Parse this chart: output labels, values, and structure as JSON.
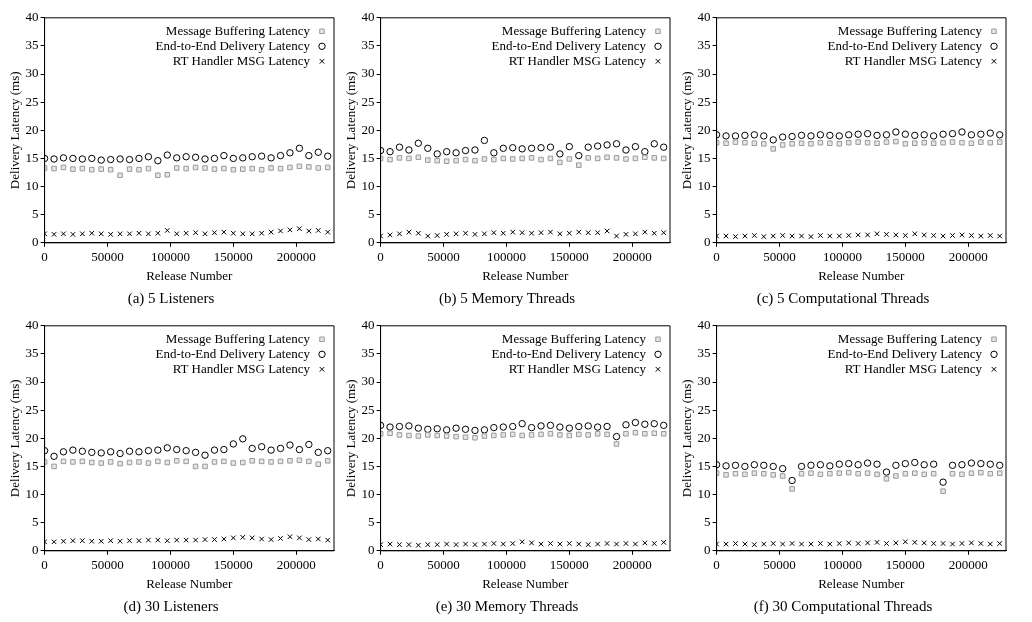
{
  "chart_data": [
    {
      "type": "scatter",
      "title": "(a) 5 Listeners",
      "xlabel": "Release Number",
      "ylabel": "Delivery Latency (ms)",
      "xlim": [
        0,
        230000
      ],
      "ylim": [
        0,
        40
      ],
      "xticks": [
        0,
        50000,
        100000,
        150000,
        200000
      ],
      "yticks": [
        0,
        5,
        10,
        15,
        20,
        25,
        30,
        35,
        40
      ],
      "legend": "top right",
      "x": [
        0,
        7500,
        15000,
        22500,
        30000,
        37500,
        45000,
        52500,
        60000,
        67500,
        75000,
        82500,
        90000,
        97500,
        105000,
        112500,
        120000,
        127500,
        135000,
        142500,
        150000,
        157500,
        165000,
        172500,
        180000,
        187500,
        195000,
        202500,
        210000,
        217500,
        225000
      ],
      "series": [
        {
          "name": "Message Buffering Latency",
          "color": "#999999",
          "marker": "square",
          "values": [
            13.3,
            13.2,
            13.4,
            13.1,
            13.2,
            13.0,
            13.1,
            13.0,
            12.0,
            13.1,
            13.0,
            13.2,
            12.0,
            12.1,
            13.3,
            13.2,
            13.4,
            13.3,
            13.1,
            13.2,
            13.0,
            13.1,
            13.2,
            13.0,
            13.3,
            13.2,
            13.4,
            13.6,
            13.5,
            13.3,
            13.4
          ]
        },
        {
          "name": "End-to-End Delivery Latency",
          "color": "#000000",
          "marker": "circle",
          "values": [
            15.0,
            14.9,
            15.1,
            15.0,
            14.9,
            15.0,
            14.7,
            14.8,
            14.9,
            14.8,
            15.0,
            15.3,
            14.6,
            15.6,
            15.1,
            15.3,
            15.2,
            14.9,
            15.0,
            15.5,
            15.0,
            15.1,
            15.3,
            15.4,
            15.1,
            15.5,
            16.0,
            16.8,
            15.5,
            16.1,
            15.4
          ]
        },
        {
          "name": "RT Handler MSG Latency",
          "color": "#000000",
          "marker": "cross",
          "values": [
            1.6,
            1.5,
            1.6,
            1.5,
            1.6,
            1.7,
            1.6,
            1.5,
            1.6,
            1.6,
            1.7,
            1.6,
            1.7,
            2.2,
            1.6,
            1.7,
            1.8,
            1.6,
            1.8,
            1.9,
            1.7,
            1.6,
            1.6,
            1.7,
            1.9,
            2.1,
            2.3,
            2.5,
            2.1,
            2.2,
            1.9
          ]
        }
      ]
    },
    {
      "type": "scatter",
      "title": "(b) 5 Memory Threads",
      "xlabel": "Release Number",
      "ylabel": "Delivery Latency (ms)",
      "xlim": [
        0,
        230000
      ],
      "ylim": [
        0,
        40
      ],
      "xticks": [
        0,
        50000,
        100000,
        150000,
        200000
      ],
      "yticks": [
        0,
        5,
        10,
        15,
        20,
        25,
        30,
        35,
        40
      ],
      "legend": "top right",
      "x": [
        0,
        7500,
        15000,
        22500,
        30000,
        37500,
        45000,
        52500,
        60000,
        67500,
        75000,
        82500,
        90000,
        97500,
        105000,
        112500,
        120000,
        127500,
        135000,
        142500,
        150000,
        157500,
        165000,
        172500,
        180000,
        187500,
        195000,
        202500,
        210000,
        217500,
        225000
      ],
      "series": [
        {
          "name": "Message Buffering Latency",
          "color": "#999999",
          "marker": "square",
          "values": [
            15.0,
            14.8,
            15.1,
            15.0,
            15.2,
            14.7,
            14.6,
            14.5,
            14.6,
            14.8,
            14.6,
            14.9,
            14.8,
            15.0,
            14.9,
            15.0,
            15.1,
            14.8,
            15.0,
            14.3,
            14.9,
            13.8,
            15.1,
            15.0,
            15.2,
            15.1,
            14.9,
            15.0,
            15.2,
            15.1,
            15.0
          ]
        },
        {
          "name": "End-to-End Delivery Latency",
          "color": "#000000",
          "marker": "circle",
          "values": [
            16.4,
            16.2,
            17.0,
            16.5,
            17.7,
            16.8,
            15.8,
            16.2,
            16.0,
            16.4,
            16.5,
            18.2,
            16.0,
            16.8,
            16.9,
            16.7,
            16.8,
            16.9,
            17.0,
            15.8,
            17.1,
            15.5,
            17.0,
            17.2,
            17.4,
            17.6,
            16.5,
            17.1,
            16.2,
            17.6,
            17.0
          ]
        },
        {
          "name": "RT Handler MSG Latency",
          "color": "#000000",
          "marker": "cross",
          "values": [
            1.2,
            1.4,
            1.6,
            1.9,
            1.7,
            1.2,
            1.3,
            1.5,
            1.6,
            1.7,
            1.5,
            1.6,
            1.8,
            1.7,
            1.9,
            1.8,
            1.7,
            1.8,
            1.9,
            1.6,
            1.7,
            1.9,
            1.8,
            1.8,
            2.1,
            1.2,
            1.5,
            1.6,
            1.9,
            1.7,
            1.8
          ]
        }
      ]
    },
    {
      "type": "scatter",
      "title": "(c) 5 Computational Threads",
      "xlabel": "Release Number",
      "ylabel": "Delivery Latency (ms)",
      "xlim": [
        0,
        230000
      ],
      "ylim": [
        0,
        40
      ],
      "xticks": [
        0,
        50000,
        100000,
        150000,
        200000
      ],
      "yticks": [
        0,
        5,
        10,
        15,
        20,
        25,
        30,
        35,
        40
      ],
      "legend": "top right",
      "x": [
        0,
        7500,
        15000,
        22500,
        30000,
        37500,
        45000,
        52500,
        60000,
        67500,
        75000,
        82500,
        90000,
        97500,
        105000,
        112500,
        120000,
        127500,
        135000,
        142500,
        150000,
        157500,
        165000,
        172500,
        180000,
        187500,
        195000,
        202500,
        210000,
        217500,
        225000
      ],
      "series": [
        {
          "name": "Message Buffering Latency",
          "color": "#999999",
          "marker": "square",
          "values": [
            17.8,
            17.7,
            17.9,
            17.8,
            17.7,
            17.6,
            16.7,
            17.4,
            17.6,
            17.7,
            17.6,
            17.8,
            17.7,
            17.6,
            17.8,
            17.9,
            17.8,
            17.7,
            17.9,
            18.0,
            17.6,
            17.7,
            17.8,
            17.7,
            17.8,
            17.9,
            17.8,
            17.7,
            17.9,
            17.8,
            17.9
          ]
        },
        {
          "name": "End-to-End Delivery Latency",
          "color": "#000000",
          "marker": "circle",
          "values": [
            19.2,
            19.0,
            19.0,
            19.1,
            19.2,
            19.0,
            18.3,
            18.8,
            18.9,
            19.1,
            19.0,
            19.2,
            19.1,
            19.0,
            19.2,
            19.3,
            19.4,
            19.1,
            19.2,
            19.7,
            19.3,
            19.1,
            19.2,
            19.0,
            19.3,
            19.4,
            19.7,
            19.2,
            19.3,
            19.5,
            19.2
          ]
        },
        {
          "name": "RT Handler MSG Latency",
          "color": "#000000",
          "marker": "cross",
          "values": [
            1.2,
            1.2,
            1.1,
            1.2,
            1.3,
            1.1,
            1.2,
            1.3,
            1.2,
            1.2,
            1.1,
            1.3,
            1.2,
            1.2,
            1.3,
            1.4,
            1.4,
            1.6,
            1.5,
            1.4,
            1.3,
            1.6,
            1.4,
            1.3,
            1.2,
            1.3,
            1.4,
            1.3,
            1.2,
            1.3,
            1.2
          ]
        }
      ]
    },
    {
      "type": "scatter",
      "title": "(d) 30 Listeners",
      "xlabel": "Release Number",
      "ylabel": "Delivery Latency (ms)",
      "xlim": [
        0,
        230000
      ],
      "ylim": [
        0,
        40
      ],
      "xticks": [
        0,
        50000,
        100000,
        150000,
        200000
      ],
      "yticks": [
        0,
        5,
        10,
        15,
        20,
        25,
        30,
        35,
        40
      ],
      "legend": "top right",
      "x": [
        0,
        7500,
        15000,
        22500,
        30000,
        37500,
        45000,
        52500,
        60000,
        67500,
        75000,
        82500,
        90000,
        97500,
        105000,
        112500,
        120000,
        127500,
        135000,
        142500,
        150000,
        157500,
        165000,
        172500,
        180000,
        187500,
        195000,
        202500,
        210000,
        217500,
        225000
      ],
      "series": [
        {
          "name": "Message Buffering Latency",
          "color": "#999999",
          "marker": "square",
          "values": [
            15.8,
            15.0,
            15.9,
            15.8,
            15.9,
            15.7,
            15.6,
            15.8,
            15.5,
            15.7,
            15.8,
            15.6,
            15.9,
            15.7,
            16.0,
            15.9,
            15.0,
            15.0,
            15.8,
            15.9,
            15.6,
            15.7,
            16.0,
            15.9,
            15.8,
            15.9,
            16.0,
            16.1,
            15.9,
            15.4,
            16.0
          ]
        },
        {
          "name": "End-to-End Delivery Latency",
          "color": "#000000",
          "marker": "circle",
          "values": [
            17.8,
            16.8,
            17.6,
            17.9,
            17.7,
            17.5,
            17.4,
            17.6,
            17.3,
            17.7,
            17.6,
            17.8,
            17.9,
            18.3,
            18.0,
            17.8,
            17.5,
            17.0,
            17.9,
            18.0,
            19.0,
            19.9,
            18.2,
            18.5,
            17.9,
            18.2,
            18.8,
            18.0,
            18.9,
            17.5,
            17.8
          ]
        },
        {
          "name": "RT Handler MSG Latency",
          "color": "#000000",
          "marker": "cross",
          "values": [
            1.6,
            1.6,
            1.7,
            1.8,
            1.8,
            1.7,
            1.7,
            1.8,
            1.7,
            1.8,
            1.8,
            1.9,
            1.9,
            1.8,
            1.9,
            1.9,
            1.9,
            2.0,
            2.0,
            2.1,
            2.3,
            2.4,
            2.3,
            2.1,
            2.0,
            2.2,
            2.5,
            2.3,
            2.0,
            2.1,
            1.9
          ]
        }
      ]
    },
    {
      "type": "scatter",
      "title": "(e) 30 Memory Threads",
      "xlabel": "Release Number",
      "ylabel": "Delivery Latency (ms)",
      "xlim": [
        0,
        230000
      ],
      "ylim": [
        0,
        40
      ],
      "xticks": [
        0,
        50000,
        100000,
        150000,
        200000
      ],
      "yticks": [
        0,
        5,
        10,
        15,
        20,
        25,
        30,
        35,
        40
      ],
      "legend": "top right",
      "x": [
        0,
        7500,
        15000,
        22500,
        30000,
        37500,
        45000,
        52500,
        60000,
        67500,
        75000,
        82500,
        90000,
        97500,
        105000,
        112500,
        120000,
        127500,
        135000,
        142500,
        150000,
        157500,
        165000,
        172500,
        180000,
        187500,
        195000,
        202500,
        210000,
        217500,
        225000
      ],
      "series": [
        {
          "name": "Message Buffering Latency",
          "color": "#999999",
          "marker": "square",
          "values": [
            20.8,
            20.9,
            20.6,
            20.5,
            20.4,
            20.6,
            20.5,
            20.4,
            20.3,
            20.2,
            20.1,
            20.4,
            20.5,
            20.6,
            20.7,
            20.5,
            20.6,
            20.7,
            20.8,
            20.6,
            20.5,
            20.7,
            20.6,
            20.8,
            20.7,
            19.0,
            20.8,
            21.0,
            20.8,
            20.9,
            20.8
          ]
        },
        {
          "name": "End-to-End Delivery Latency",
          "color": "#000000",
          "marker": "circle",
          "values": [
            22.3,
            22.0,
            22.1,
            22.2,
            21.8,
            21.6,
            21.7,
            21.5,
            21.8,
            21.6,
            21.4,
            21.5,
            21.9,
            22.0,
            22.1,
            22.6,
            21.9,
            22.2,
            22.3,
            22.0,
            21.8,
            22.1,
            22.2,
            22.0,
            22.1,
            20.3,
            22.4,
            22.8,
            22.5,
            22.6,
            22.3
          ]
        },
        {
          "name": "RT Handler MSG Latency",
          "color": "#000000",
          "marker": "cross",
          "values": [
            1.1,
            1.2,
            1.1,
            1.1,
            1.0,
            1.1,
            1.1,
            1.2,
            1.1,
            1.2,
            1.1,
            1.2,
            1.3,
            1.2,
            1.3,
            1.6,
            1.4,
            1.2,
            1.3,
            1.2,
            1.3,
            1.2,
            1.1,
            1.2,
            1.3,
            1.2,
            1.3,
            1.2,
            1.4,
            1.3,
            1.5
          ]
        }
      ]
    },
    {
      "type": "scatter",
      "title": "(f) 30 Computational Threads",
      "xlabel": "Release Number",
      "ylabel": "Delivery Latency (ms)",
      "xlim": [
        0,
        230000
      ],
      "ylim": [
        0,
        40
      ],
      "xticks": [
        0,
        50000,
        100000,
        150000,
        200000
      ],
      "yticks": [
        0,
        5,
        10,
        15,
        20,
        25,
        30,
        35,
        40
      ],
      "legend": "top right",
      "x": [
        0,
        7500,
        15000,
        22500,
        30000,
        37500,
        45000,
        52500,
        60000,
        67500,
        75000,
        82500,
        90000,
        97500,
        105000,
        112500,
        120000,
        127500,
        135000,
        142500,
        150000,
        157500,
        165000,
        172500,
        180000,
        187500,
        195000,
        202500,
        210000,
        217500,
        225000
      ],
      "series": [
        {
          "name": "Message Buffering Latency",
          "color": "#999999",
          "marker": "square",
          "values": [
            13.8,
            13.5,
            13.7,
            13.6,
            13.8,
            13.7,
            13.5,
            13.3,
            11.0,
            13.7,
            13.8,
            13.6,
            13.7,
            13.8,
            13.9,
            13.7,
            13.8,
            13.6,
            12.8,
            13.3,
            13.7,
            13.8,
            13.6,
            13.7,
            10.6,
            13.7,
            13.6,
            13.8,
            13.9,
            13.7,
            13.8
          ]
        },
        {
          "name": "End-to-End Delivery Latency",
          "color": "#000000",
          "marker": "circle",
          "values": [
            15.3,
            15.1,
            15.2,
            15.0,
            15.3,
            15.2,
            15.0,
            14.6,
            12.5,
            15.0,
            15.2,
            15.3,
            15.1,
            15.4,
            15.5,
            15.3,
            15.6,
            15.4,
            14.0,
            15.2,
            15.5,
            15.7,
            15.3,
            15.4,
            12.2,
            15.2,
            15.3,
            15.6,
            15.5,
            15.4,
            15.2
          ]
        },
        {
          "name": "RT Handler MSG Latency",
          "color": "#000000",
          "marker": "cross",
          "values": [
            1.2,
            1.2,
            1.3,
            1.2,
            1.1,
            1.2,
            1.3,
            1.2,
            1.3,
            1.2,
            1.2,
            1.3,
            1.2,
            1.3,
            1.4,
            1.3,
            1.4,
            1.5,
            1.3,
            1.4,
            1.6,
            1.5,
            1.4,
            1.3,
            1.3,
            1.2,
            1.3,
            1.4,
            1.3,
            1.2,
            1.3
          ]
        }
      ]
    }
  ]
}
